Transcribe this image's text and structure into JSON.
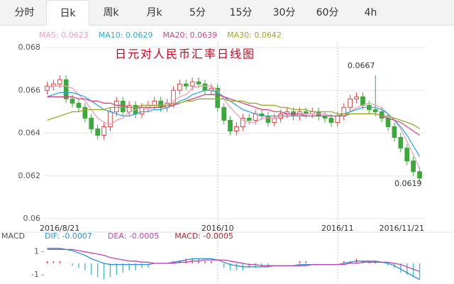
{
  "tabs": [
    "分时",
    "日k",
    "周k",
    "月k",
    "5分",
    "15分",
    "30分",
    "60分",
    "4h"
  ],
  "active_tab": 1,
  "chart_data": [
    {
      "type": "candlestick",
      "title": "日元对人民币汇率日线图",
      "categories": [
        "2016/8/21",
        null,
        null,
        null,
        null,
        null,
        null,
        null,
        null,
        null,
        null,
        null,
        null,
        null,
        null,
        null,
        null,
        null,
        null,
        null,
        null,
        null,
        null,
        null,
        null,
        null,
        null,
        "2016/10",
        null,
        null,
        null,
        null,
        null,
        null,
        null,
        null,
        null,
        null,
        null,
        null,
        null,
        null,
        null,
        null,
        null,
        null,
        "2016/11",
        null,
        null,
        null,
        null,
        null,
        null,
        null,
        null,
        null,
        null,
        null,
        null,
        "2016/11/21"
      ],
      "open": [
        0.066,
        0.0662,
        0.0663,
        0.0665,
        0.0656,
        0.0654,
        0.0652,
        0.0647,
        0.0642,
        0.0639,
        0.0643,
        0.065,
        0.0655,
        0.065,
        0.0653,
        0.0649,
        0.0652,
        0.0653,
        0.0655,
        0.0652,
        0.0654,
        0.066,
        0.0663,
        0.0662,
        0.0664,
        0.0663,
        0.066,
        0.0661,
        0.0652,
        0.0646,
        0.0641,
        0.0643,
        0.0647,
        0.0646,
        0.0649,
        0.0648,
        0.0645,
        0.0647,
        0.0649,
        0.065,
        0.0648,
        0.065,
        0.0649,
        0.065,
        0.0648,
        0.0647,
        0.0645,
        0.0648,
        0.0652,
        0.0656,
        0.0657,
        0.0653,
        0.0651,
        0.065,
        0.0647,
        0.0643,
        0.0638,
        0.0633,
        0.0627,
        0.0622
      ],
      "high": [
        0.0664,
        0.0665,
        0.0667,
        0.0667,
        0.0658,
        0.0656,
        0.0654,
        0.0649,
        0.0644,
        0.0645,
        0.0652,
        0.0657,
        0.0657,
        0.0655,
        0.0655,
        0.0654,
        0.0655,
        0.0657,
        0.0657,
        0.0656,
        0.0662,
        0.0665,
        0.0665,
        0.0666,
        0.0666,
        0.0665,
        0.0663,
        0.0663,
        0.0654,
        0.0648,
        0.0645,
        0.0649,
        0.0649,
        0.0651,
        0.0651,
        0.065,
        0.0649,
        0.0651,
        0.0652,
        0.0652,
        0.0652,
        0.0652,
        0.0652,
        0.0652,
        0.065,
        0.0649,
        0.065,
        0.0654,
        0.0658,
        0.0659,
        0.0659,
        0.0655,
        0.0667,
        0.0652,
        0.0649,
        0.0645,
        0.064,
        0.0635,
        0.0629,
        0.0624
      ],
      "low": [
        0.0658,
        0.066,
        0.0661,
        0.0654,
        0.0652,
        0.065,
        0.0645,
        0.064,
        0.0637,
        0.0637,
        0.0641,
        0.0648,
        0.0648,
        0.0648,
        0.0647,
        0.0647,
        0.065,
        0.0651,
        0.065,
        0.065,
        0.0652,
        0.0658,
        0.066,
        0.066,
        0.0661,
        0.0658,
        0.0658,
        0.065,
        0.0644,
        0.0639,
        0.0639,
        0.0641,
        0.0644,
        0.0644,
        0.0646,
        0.0643,
        0.0643,
        0.0645,
        0.0647,
        0.0646,
        0.0646,
        0.0647,
        0.0647,
        0.0646,
        0.0645,
        0.0643,
        0.0643,
        0.0646,
        0.065,
        0.0654,
        0.0651,
        0.0649,
        0.0648,
        0.0645,
        0.0641,
        0.0636,
        0.0631,
        0.0625,
        0.062,
        0.0617
      ],
      "close": [
        0.0662,
        0.0663,
        0.0665,
        0.0656,
        0.0654,
        0.0652,
        0.0647,
        0.0642,
        0.0639,
        0.0643,
        0.065,
        0.0655,
        0.065,
        0.0653,
        0.0649,
        0.0652,
        0.0653,
        0.0655,
        0.0652,
        0.0654,
        0.066,
        0.0663,
        0.0662,
        0.0664,
        0.0663,
        0.066,
        0.0661,
        0.0652,
        0.0646,
        0.0641,
        0.0643,
        0.0647,
        0.0646,
        0.0649,
        0.0648,
        0.0645,
        0.0647,
        0.0649,
        0.065,
        0.0648,
        0.065,
        0.0649,
        0.065,
        0.0648,
        0.0647,
        0.0645,
        0.0648,
        0.0652,
        0.0656,
        0.0657,
        0.0653,
        0.0651,
        0.065,
        0.0647,
        0.0643,
        0.0638,
        0.0633,
        0.0627,
        0.0622,
        0.0619
      ],
      "up_color": "#e8403a",
      "down_color": "#3aa83a",
      "series": [
        {
          "name": "MA5: 0.0623",
          "color": "#f29cbd",
          "values": [
            0.0661,
            0.0662,
            0.0662,
            0.0662,
            0.0661,
            0.0658,
            0.0655,
            0.0651,
            0.0647,
            0.0645,
            0.0644,
            0.0646,
            0.0647,
            0.065,
            0.0651,
            0.0652,
            0.0651,
            0.0652,
            0.0653,
            0.0653,
            0.0655,
            0.0657,
            0.0658,
            0.0661,
            0.0662,
            0.0662,
            0.0662,
            0.066,
            0.0656,
            0.0652,
            0.0649,
            0.0646,
            0.0645,
            0.0645,
            0.0647,
            0.0647,
            0.0647,
            0.0648,
            0.0648,
            0.0648,
            0.0649,
            0.0649,
            0.0649,
            0.0649,
            0.0649,
            0.0648,
            0.0648,
            0.0648,
            0.065,
            0.0652,
            0.0653,
            0.0654,
            0.0653,
            0.0652,
            0.0649,
            0.0646,
            0.0642,
            0.0636,
            0.063,
            0.0623
          ]
        },
        {
          "name": "MA10: 0.0629",
          "color": "#2fa8e0",
          "values": [
            0.0657,
            0.0658,
            0.0659,
            0.0659,
            0.0659,
            0.0658,
            0.0657,
            0.0655,
            0.0653,
            0.0651,
            0.065,
            0.0649,
            0.0648,
            0.0648,
            0.0649,
            0.065,
            0.065,
            0.0651,
            0.0651,
            0.0652,
            0.0653,
            0.0655,
            0.0656,
            0.0658,
            0.0659,
            0.066,
            0.066,
            0.0659,
            0.0657,
            0.0655,
            0.0653,
            0.0651,
            0.065,
            0.0649,
            0.0648,
            0.0648,
            0.0648,
            0.0648,
            0.0648,
            0.0648,
            0.0648,
            0.0648,
            0.0648,
            0.0648,
            0.0648,
            0.0648,
            0.0648,
            0.0649,
            0.065,
            0.0651,
            0.0652,
            0.0652,
            0.0652,
            0.0651,
            0.0649,
            0.0646,
            0.0643,
            0.0639,
            0.0634,
            0.0629
          ]
        },
        {
          "name": "MA20: 0.0639",
          "color": "#d9457f",
          "values": [
            0.0657,
            0.0657,
            0.0657,
            0.0657,
            0.0657,
            0.0656,
            0.0656,
            0.0655,
            0.0655,
            0.0654,
            0.0654,
            0.0653,
            0.0653,
            0.0652,
            0.0652,
            0.0652,
            0.0652,
            0.0652,
            0.0652,
            0.0653,
            0.0653,
            0.0654,
            0.0655,
            0.0656,
            0.0657,
            0.0658,
            0.0658,
            0.0658,
            0.0657,
            0.0656,
            0.0655,
            0.0654,
            0.0653,
            0.0652,
            0.0651,
            0.0651,
            0.065,
            0.065,
            0.0649,
            0.0649,
            0.0649,
            0.0648,
            0.0648,
            0.0648,
            0.0648,
            0.0648,
            0.0648,
            0.0648,
            0.0649,
            0.0649,
            0.0649,
            0.0649,
            0.0649,
            0.0648,
            0.0647,
            0.0646,
            0.0645,
            0.0643,
            0.0641,
            0.0639
          ]
        },
        {
          "name": "MA30: 0.0642",
          "color": "#9aa92b",
          "values": [
            0.0646,
            0.0647,
            0.0648,
            0.0649,
            0.065,
            0.065,
            0.0651,
            0.0651,
            0.0651,
            0.0651,
            0.0652,
            0.0652,
            0.0652,
            0.0652,
            0.0652,
            0.0653,
            0.0653,
            0.0653,
            0.0653,
            0.0653,
            0.0654,
            0.0654,
            0.0655,
            0.0655,
            0.0656,
            0.0656,
            0.0656,
            0.0656,
            0.0656,
            0.0655,
            0.0655,
            0.0655,
            0.0654,
            0.0654,
            0.0653,
            0.0653,
            0.0653,
            0.0652,
            0.0652,
            0.0651,
            0.0651,
            0.0651,
            0.065,
            0.065,
            0.065,
            0.065,
            0.0649,
            0.0649,
            0.0649,
            0.0649,
            0.0649,
            0.0649,
            0.0649,
            0.0648,
            0.0648,
            0.0647,
            0.0646,
            0.0645,
            0.0644,
            0.0642
          ]
        }
      ],
      "high_label": "0.0667",
      "last_label": "0.0619",
      "ylim": [
        0.06,
        0.068
      ],
      "yticks": [
        0.06,
        0.062,
        0.064,
        0.066,
        0.068
      ],
      "grid": true
    },
    {
      "type": "macd",
      "label": "MACD",
      "series": [
        {
          "name": "DIF: -0.0007",
          "color": "#2b8fd6",
          "values": [
            1.3,
            1.3,
            1.3,
            1.2,
            1.1,
            0.9,
            0.7,
            0.4,
            0.2,
            0.0,
            -0.1,
            -0.1,
            -0.1,
            -0.1,
            -0.1,
            -0.1,
            -0.1,
            0.0,
            0.0,
            0.0,
            0.1,
            0.2,
            0.3,
            0.4,
            0.4,
            0.4,
            0.4,
            0.3,
            0.1,
            -0.1,
            -0.2,
            -0.3,
            -0.3,
            -0.3,
            -0.3,
            -0.3,
            -0.2,
            -0.2,
            -0.2,
            -0.2,
            -0.1,
            -0.1,
            -0.1,
            -0.1,
            -0.1,
            -0.1,
            -0.1,
            0.0,
            0.1,
            0.2,
            0.2,
            0.2,
            0.2,
            0.1,
            0.0,
            -0.2,
            -0.5,
            -0.8,
            -1.1,
            -1.4
          ]
        },
        {
          "name": "DEA: -0.0005",
          "color": "#c63fb5",
          "values": [
            1.2,
            1.2,
            1.2,
            1.2,
            1.2,
            1.1,
            1.0,
            0.9,
            0.8,
            0.7,
            0.5,
            0.4,
            0.3,
            0.2,
            0.2,
            0.1,
            0.1,
            0.0,
            0.0,
            0.0,
            0.0,
            0.1,
            0.1,
            0.2,
            0.2,
            0.3,
            0.3,
            0.3,
            0.3,
            0.2,
            0.1,
            0.0,
            -0.1,
            -0.1,
            -0.2,
            -0.2,
            -0.2,
            -0.2,
            -0.2,
            -0.2,
            -0.2,
            -0.2,
            -0.1,
            -0.1,
            -0.1,
            -0.1,
            -0.1,
            -0.1,
            0.0,
            0.0,
            0.1,
            0.1,
            0.1,
            0.1,
            0.1,
            0.0,
            -0.1,
            -0.3,
            -0.5,
            -0.7
          ]
        }
      ],
      "bars": {
        "name": "MACD: -0.0005",
        "color": "#b8232a",
        "up_color": "#e8403a",
        "down_color": "#3cc0c8",
        "values": [
          0.2,
          0.2,
          0.2,
          0,
          -0.2,
          -0.4,
          -0.6,
          -1.0,
          -1.2,
          -1.4,
          -1.2,
          -1.0,
          -0.8,
          -0.6,
          -0.6,
          -0.4,
          -0.4,
          0,
          0,
          0,
          0.2,
          0.2,
          0.4,
          0.4,
          0.4,
          0.2,
          0.2,
          0,
          -0.4,
          -0.6,
          -0.6,
          -0.6,
          -0.4,
          -0.4,
          -0.2,
          -0.2,
          0,
          0,
          0,
          0,
          0.2,
          0.2,
          0,
          0,
          0,
          0,
          0,
          0.2,
          0.2,
          0.4,
          0.2,
          0.2,
          0.2,
          0,
          -0.2,
          -0.4,
          -0.8,
          -1.0,
          -1.2,
          -1.4
        ]
      },
      "ylim": [
        -1.6,
        1.9
      ],
      "yticks": [
        -1,
        1
      ]
    }
  ]
}
